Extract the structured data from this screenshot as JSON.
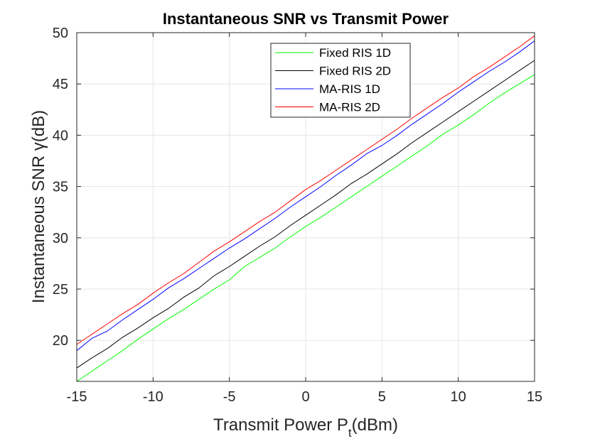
{
  "chart_data": {
    "type": "line",
    "title": "Instantaneous SNR vs Transmit Power",
    "xlabel_main": "Transmit Power P",
    "xlabel_sub": "t",
    "xlabel_unit": "(dBm)",
    "ylabel": "Instantaneous SNR γ(dB)",
    "xlim": [
      -15,
      15
    ],
    "ylim": [
      16,
      50
    ],
    "xticks": [
      -15,
      -10,
      -5,
      0,
      5,
      10,
      15
    ],
    "yticks": [
      20,
      25,
      30,
      35,
      40,
      45,
      50
    ],
    "grid": true,
    "legend_position": "top-center",
    "x": [
      -15,
      -14,
      -13,
      -12,
      -11,
      -10,
      -9,
      -8,
      -7,
      -6,
      -5,
      -4,
      -3,
      -2,
      -1,
      0,
      1,
      2,
      3,
      4,
      5,
      6,
      7,
      8,
      9,
      10,
      11,
      12,
      13,
      14,
      15
    ],
    "series": [
      {
        "name": "Fixed RIS 1D",
        "color": "#00ff00",
        "values": [
          16.0,
          17.0,
          18.0,
          19.0,
          20.1,
          21.1,
          22.1,
          23.0,
          24.0,
          25.0,
          25.9,
          27.2,
          28.1,
          29.0,
          30.1,
          31.1,
          32.0,
          33.0,
          34.0,
          35.0,
          36.0,
          37.0,
          38.0,
          39.0,
          40.1,
          41.0,
          42.0,
          43.1,
          44.1,
          45.0,
          45.9
        ]
      },
      {
        "name": "Fixed RIS 2D",
        "color": "#000000",
        "values": [
          17.3,
          18.3,
          19.2,
          20.3,
          21.2,
          22.2,
          23.1,
          24.2,
          25.1,
          26.3,
          27.2,
          28.2,
          29.2,
          30.1,
          31.2,
          32.2,
          33.2,
          34.2,
          35.3,
          36.2,
          37.2,
          38.2,
          39.3,
          40.3,
          41.3,
          42.3,
          43.3,
          44.3,
          45.3,
          46.3,
          47.3
        ]
      },
      {
        "name": "MA-RIS 1D",
        "color": "#0000ff",
        "values": [
          19.0,
          20.2,
          20.9,
          22.0,
          23.0,
          24.0,
          25.1,
          26.0,
          27.0,
          28.0,
          29.0,
          29.9,
          30.9,
          31.9,
          33.0,
          34.0,
          35.0,
          36.1,
          37.1,
          38.2,
          39.0,
          40.0,
          41.1,
          42.1,
          43.1,
          44.2,
          45.2,
          46.2,
          47.1,
          48.1,
          49.2
        ]
      },
      {
        "name": "MA-RIS 2D",
        "color": "#ff0000",
        "values": [
          19.6,
          20.6,
          21.6,
          22.6,
          23.5,
          24.6,
          25.6,
          26.5,
          27.6,
          28.7,
          29.6,
          30.6,
          31.6,
          32.5,
          33.6,
          34.7,
          35.6,
          36.6,
          37.6,
          38.6,
          39.6,
          40.6,
          41.7,
          42.7,
          43.7,
          44.6,
          45.7,
          46.6,
          47.6,
          48.6,
          49.7
        ]
      }
    ]
  }
}
